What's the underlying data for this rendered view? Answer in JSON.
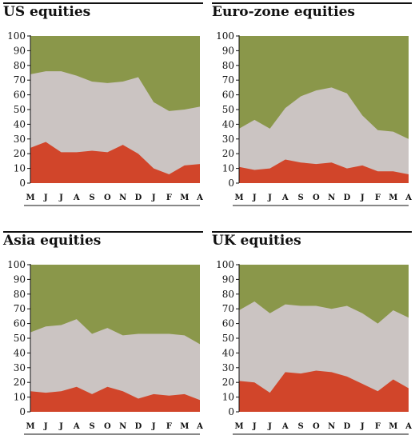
{
  "colors": {
    "top": "#8a974a",
    "middle": "#cbc4c2",
    "bottom": "#d1452a"
  },
  "months": [
    "M",
    "J",
    "J",
    "A",
    "S",
    "O",
    "N",
    "D",
    "J",
    "F",
    "M",
    "A"
  ],
  "yticks": [
    100,
    90,
    80,
    70,
    60,
    50,
    40,
    30,
    20,
    10,
    0
  ],
  "chart_data": [
    {
      "type": "area",
      "title": "US equities",
      "ylim": [
        0,
        100
      ],
      "x": [
        "M",
        "J",
        "J",
        "A",
        "S",
        "O",
        "N",
        "D",
        "J",
        "F",
        "M",
        "A"
      ],
      "series": [
        {
          "values": [
            24,
            28,
            21,
            21,
            22,
            21,
            26,
            20,
            10,
            6,
            12,
            13
          ]
        },
        {
          "values": [
            74,
            76,
            76,
            73,
            69,
            68,
            69,
            72,
            55,
            49,
            50,
            52
          ]
        }
      ]
    },
    {
      "type": "area",
      "title": "Euro-zone equities",
      "ylim": [
        0,
        100
      ],
      "x": [
        "M",
        "J",
        "J",
        "A",
        "S",
        "O",
        "N",
        "D",
        "J",
        "F",
        "M",
        "A"
      ],
      "series": [
        {
          "values": [
            11,
            9,
            10,
            16,
            14,
            13,
            14,
            10,
            12,
            8,
            8,
            6
          ]
        },
        {
          "values": [
            37,
            43,
            37,
            51,
            59,
            63,
            65,
            61,
            46,
            36,
            35,
            30
          ]
        }
      ]
    },
    {
      "type": "area",
      "title": "Asia equities",
      "ylim": [
        0,
        100
      ],
      "x": [
        "M",
        "J",
        "J",
        "A",
        "S",
        "O",
        "N",
        "D",
        "J",
        "F",
        "M",
        "A"
      ],
      "series": [
        {
          "values": [
            14,
            13,
            14,
            17,
            12,
            17,
            14,
            9,
            12,
            11,
            12,
            8
          ]
        },
        {
          "values": [
            54,
            58,
            59,
            63,
            53,
            57,
            52,
            53,
            53,
            53,
            52,
            46
          ]
        }
      ]
    },
    {
      "type": "area",
      "title": "UK equities",
      "ylim": [
        0,
        100
      ],
      "x": [
        "M",
        "J",
        "J",
        "A",
        "S",
        "O",
        "N",
        "D",
        "J",
        "F",
        "M",
        "A"
      ],
      "series": [
        {
          "values": [
            21,
            20,
            13,
            27,
            26,
            28,
            27,
            24,
            19,
            14,
            22,
            16
          ]
        },
        {
          "values": [
            69,
            75,
            67,
            73,
            72,
            72,
            70,
            72,
            67,
            60,
            69,
            64
          ]
        }
      ]
    }
  ]
}
